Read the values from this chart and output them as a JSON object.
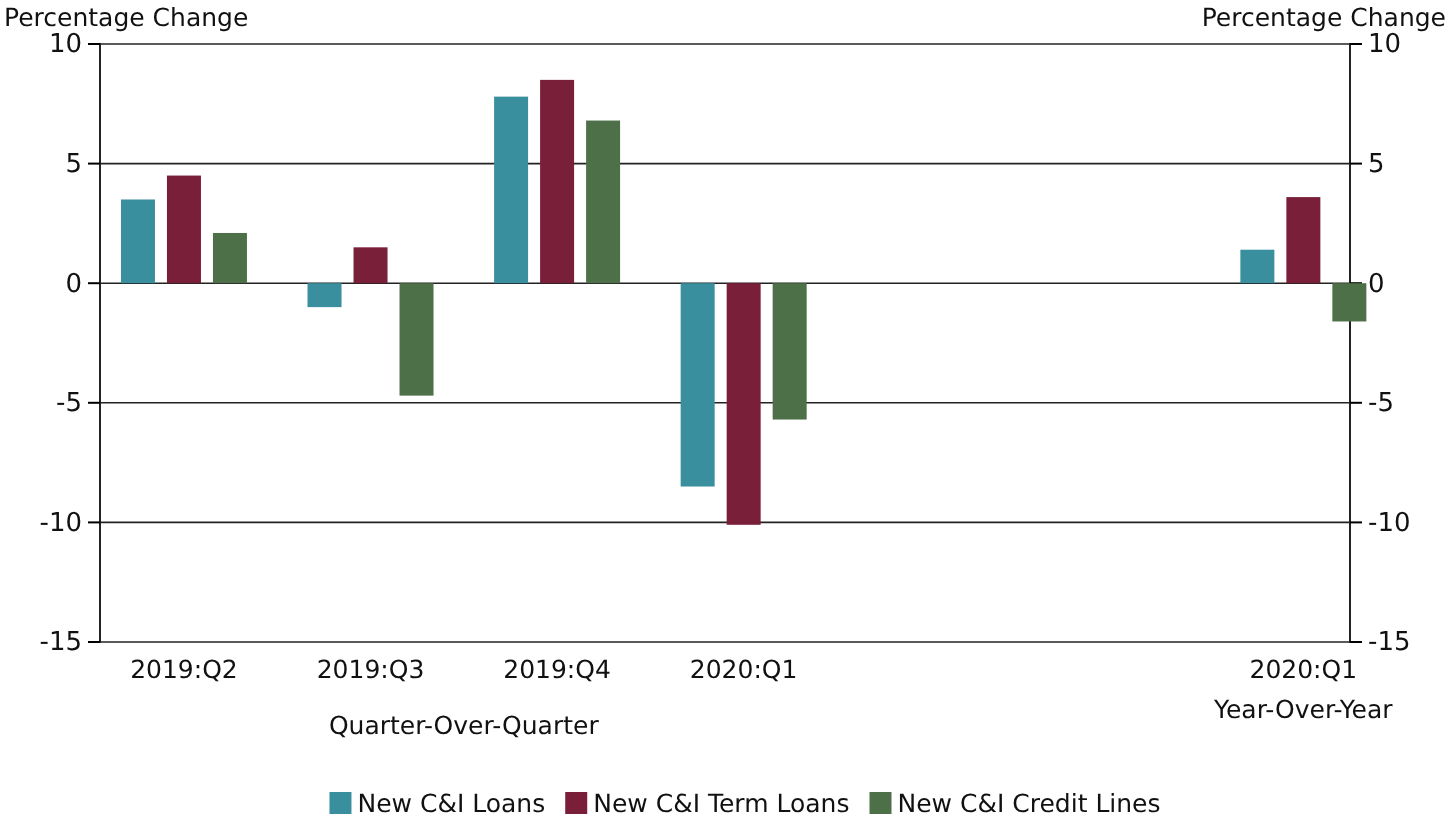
{
  "chart_data": {
    "type": "bar",
    "ylabel": "Percentage Change",
    "y2label": "Percentage Change",
    "categories": [
      "2019:Q2",
      "2019:Q3",
      "2019:Q4",
      "2020:Q1",
      null,
      null,
      "2020:Q1"
    ],
    "series": [
      {
        "name": "New C&I Loans",
        "color": "#3a8f9e",
        "values": [
          3.5,
          -1.0,
          7.8,
          -8.5,
          null,
          null,
          1.4
        ]
      },
      {
        "name": "New C&I Term Loans",
        "color": "#7a1f3a",
        "values": [
          4.5,
          1.5,
          8.5,
          -10.1,
          null,
          null,
          3.6
        ]
      },
      {
        "name": "New C&I Credit Lines",
        "color": "#4e7048",
        "values": [
          2.1,
          -4.7,
          6.8,
          -5.7,
          null,
          null,
          -1.6
        ]
      }
    ],
    "ylim": [
      -15,
      10
    ],
    "yticks": [
      -15,
      -10,
      -5,
      0,
      5,
      10
    ],
    "y2lim": [
      -15,
      10
    ],
    "y2ticks": [
      -15,
      -10,
      -5,
      0,
      5,
      10
    ],
    "annotations": [
      "Quarter-Over-Quarter",
      "Year-Over-Year"
    ],
    "grid": "y",
    "legend": "bottom"
  }
}
